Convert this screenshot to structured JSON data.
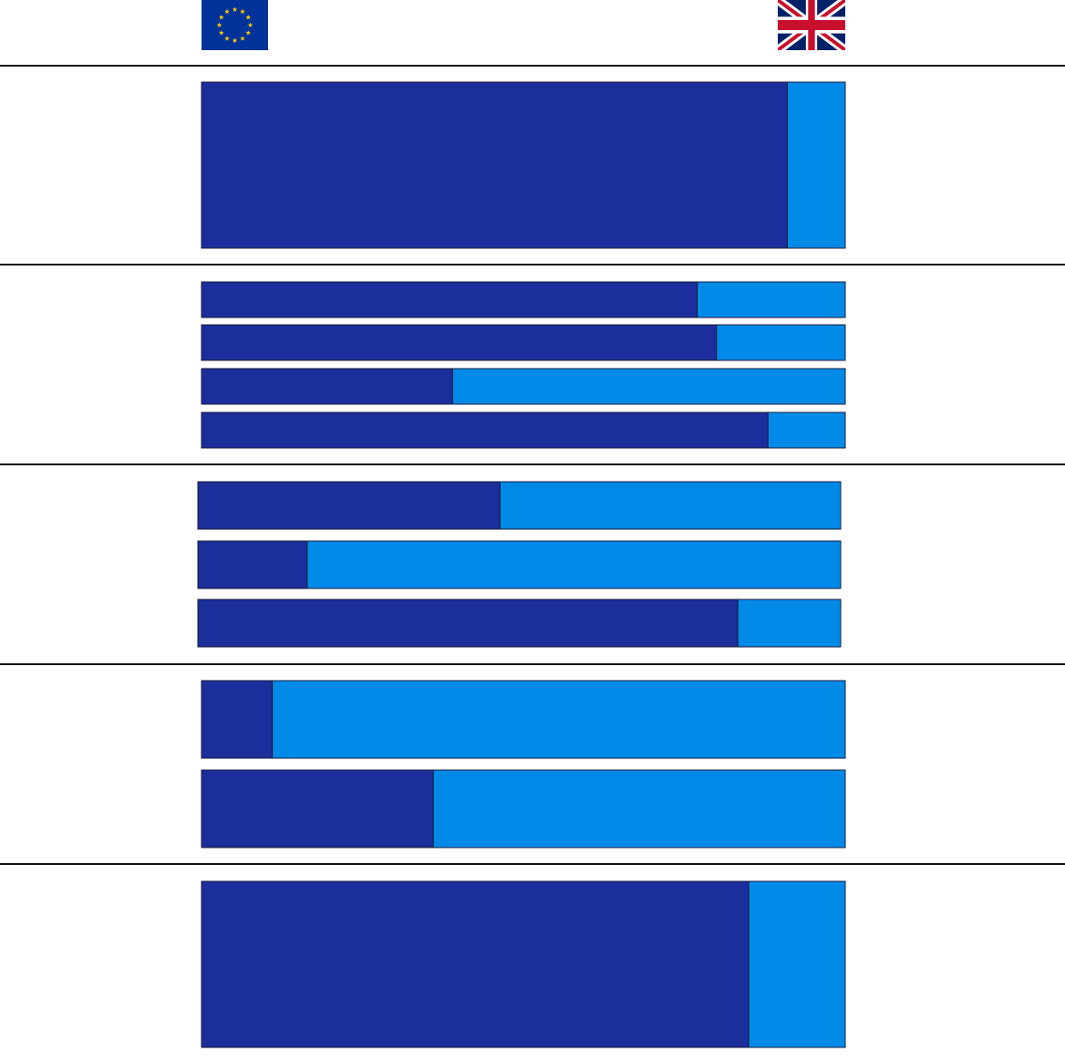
{
  "chart_data": [
    {
      "type": "bar",
      "stacked": true,
      "series": [
        {
          "color": "#1c2e9b",
          "values": [
            91
          ]
        },
        {
          "color": "#008ae8",
          "values": [
            9
          ]
        }
      ]
    },
    {
      "type": "bar",
      "stacked": true,
      "series": [
        {
          "color": "#1c2e9b",
          "values": [
            77,
            80,
            39,
            88
          ]
        },
        {
          "color": "#008ae8",
          "values": [
            23,
            20,
            61,
            12
          ]
        }
      ]
    },
    {
      "type": "bar",
      "stacked": true,
      "series": [
        {
          "color": "#1c2e9b",
          "values": [
            47,
            17,
            84
          ]
        },
        {
          "color": "#008ae8",
          "values": [
            53,
            83,
            16
          ]
        }
      ]
    },
    {
      "type": "bar",
      "stacked": true,
      "series": [
        {
          "color": "#1c2e9b",
          "values": [
            11,
            36
          ]
        },
        {
          "color": "#008ae8",
          "values": [
            89,
            64
          ]
        }
      ]
    },
    {
      "type": "bar",
      "stacked": true,
      "series": [
        {
          "color": "#1c2e9b",
          "values": [
            85
          ]
        },
        {
          "color": "#008ae8",
          "values": [
            15
          ]
        }
      ]
    }
  ]
}
